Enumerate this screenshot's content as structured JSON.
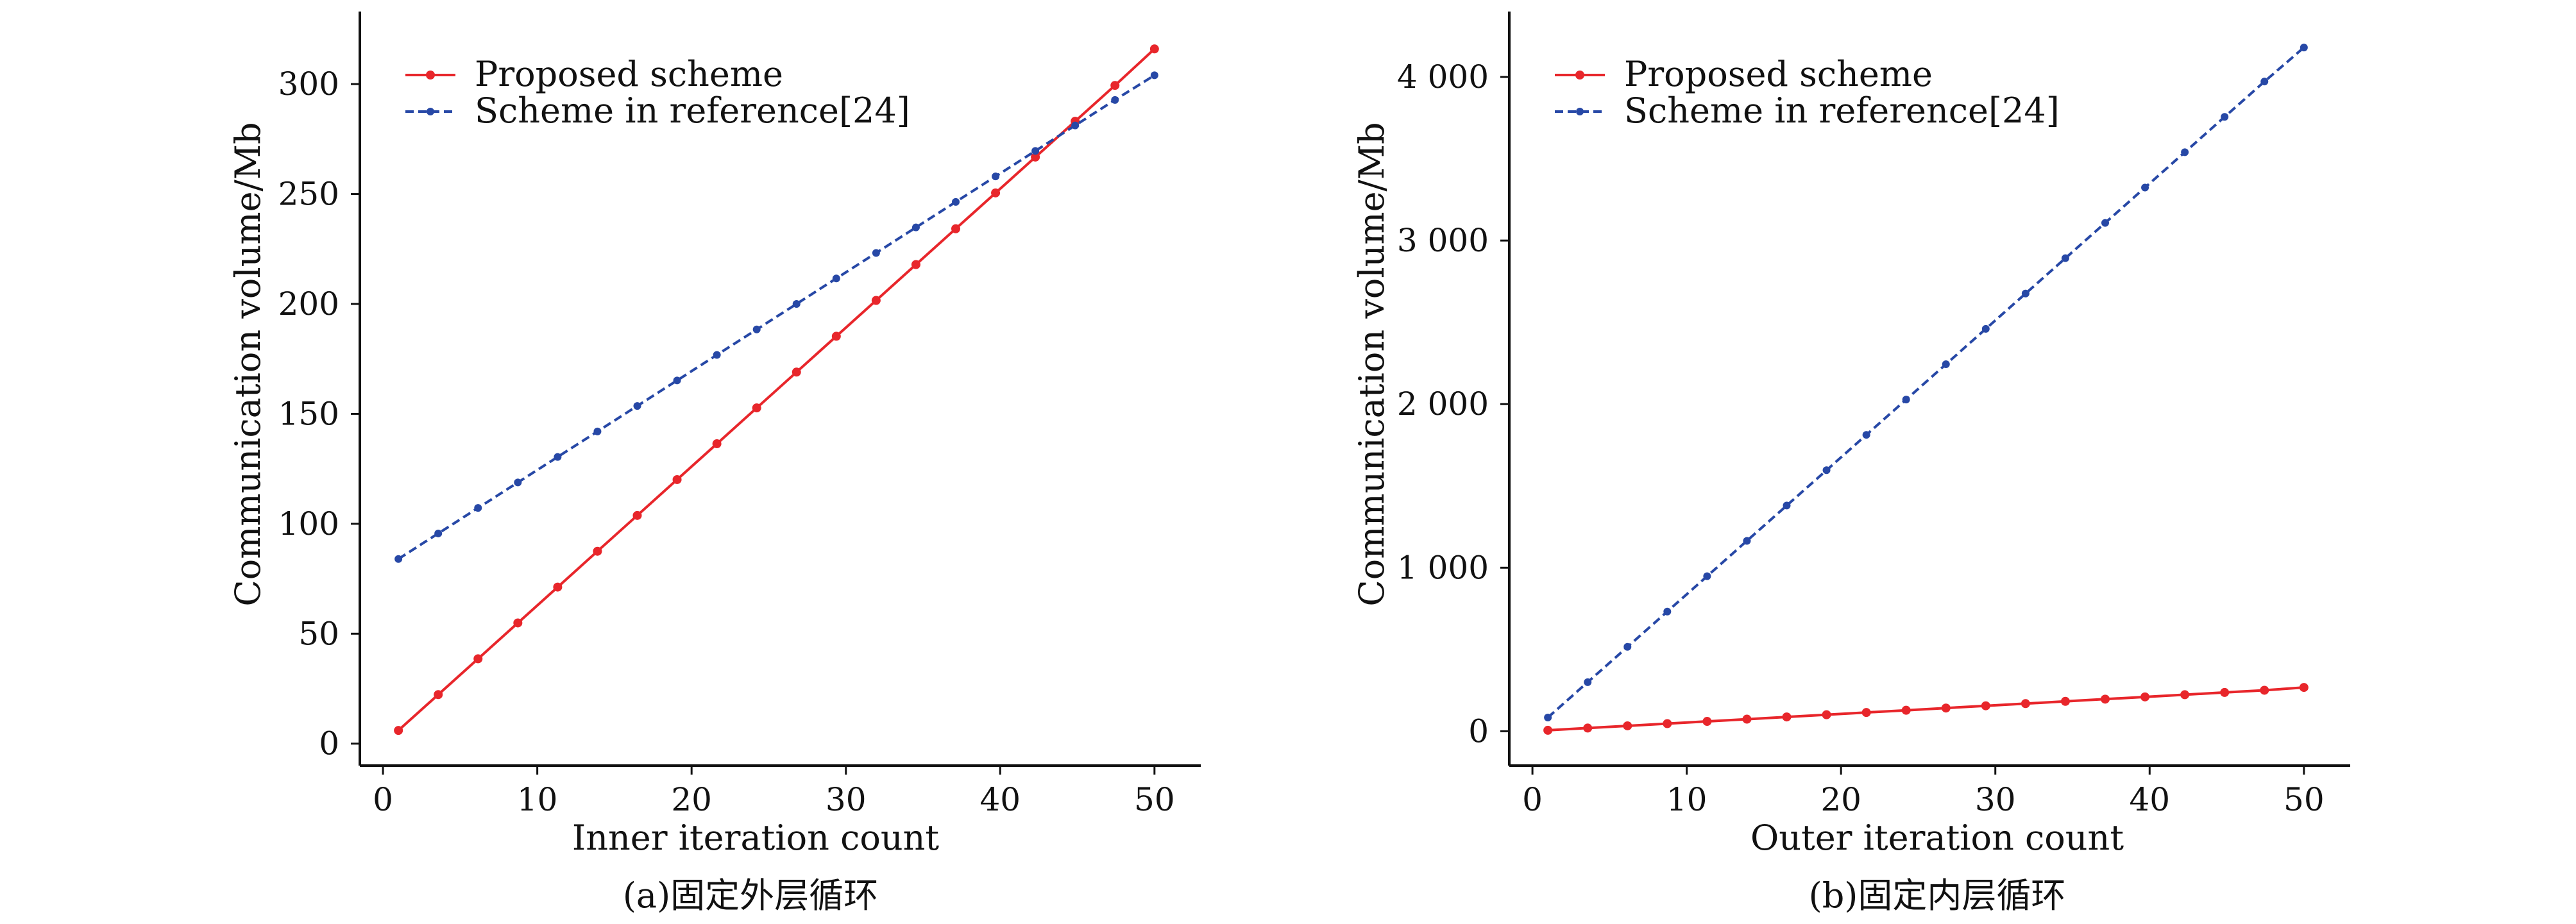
{
  "chart_data": [
    {
      "type": "line",
      "caption": "(a)固定外层循环",
      "xlabel": "Inner iteration count",
      "ylabel": "Communication volume/Mb",
      "xlim": [
        -1.5,
        53
      ],
      "ylim": [
        -10,
        333
      ],
      "xticks": [
        0,
        10,
        20,
        30,
        40,
        50
      ],
      "xtick_labels": [
        "0",
        "10",
        "20",
        "30",
        "40",
        "50"
      ],
      "yticks": [
        0,
        50,
        100,
        150,
        200,
        250,
        300
      ],
      "ytick_labels": [
        "0",
        "50",
        "100",
        "150",
        "200",
        "250",
        "300"
      ],
      "legend_position": "top-left",
      "series": [
        {
          "name": "Proposed scheme",
          "color": "#e8262b",
          "style": "solid",
          "x": [
            1,
            3.58,
            6.16,
            8.74,
            11.32,
            13.9,
            16.48,
            19.06,
            21.64,
            24.22,
            26.8,
            29.38,
            31.96,
            34.54,
            37.12,
            39.7,
            42.28,
            44.86,
            47.44,
            50
          ],
          "values": [
            6,
            22.3,
            38.6,
            54.9,
            71.2,
            87.5,
            103.8,
            120.1,
            136.4,
            152.7,
            169,
            185.3,
            201.6,
            217.9,
            234.2,
            250.5,
            266.8,
            283.1,
            299.4,
            316
          ]
        },
        {
          "name": "Scheme in reference[24]",
          "color": "#2748a6",
          "style": "dashed",
          "x": [
            1,
            3.58,
            6.16,
            8.74,
            11.32,
            13.9,
            16.48,
            19.06,
            21.64,
            24.22,
            26.8,
            29.38,
            31.96,
            34.54,
            37.12,
            39.7,
            42.28,
            44.86,
            47.44,
            50
          ],
          "values": [
            84,
            95.6,
            107.2,
            118.8,
            130.4,
            142,
            153.6,
            165.2,
            176.8,
            188.4,
            200,
            211.6,
            223.2,
            234.8,
            246.4,
            258,
            269.6,
            281.2,
            292.8,
            304
          ]
        }
      ]
    },
    {
      "type": "line",
      "caption": "(b)固定内层循环",
      "xlabel": "Outer iteration count",
      "ylabel": "Communication volume/Mb",
      "xlim": [
        -1.5,
        53
      ],
      "ylim": [
        -210,
        4400
      ],
      "xticks": [
        0,
        10,
        20,
        30,
        40,
        50
      ],
      "xtick_labels": [
        "0",
        "10",
        "20",
        "30",
        "40",
        "50"
      ],
      "yticks": [
        0,
        1000,
        2000,
        3000,
        4000
      ],
      "ytick_labels": [
        "0",
        "1 000",
        "2 000",
        "3 000",
        "4 000"
      ],
      "legend_position": "top-left",
      "series": [
        {
          "name": "Proposed scheme",
          "color": "#e8262b",
          "style": "solid",
          "x": [
            1,
            3.58,
            6.16,
            8.74,
            11.32,
            13.9,
            16.48,
            19.06,
            21.64,
            24.22,
            26.8,
            29.38,
            31.96,
            34.54,
            37.12,
            39.7,
            42.28,
            44.86,
            47.44,
            50
          ],
          "values": [
            6,
            19.6,
            33.2,
            46.8,
            60.4,
            74,
            87.6,
            101.2,
            114.8,
            128.4,
            142,
            155.6,
            169.2,
            182.8,
            196.4,
            210,
            223.6,
            237.2,
            250.8,
            268
          ]
        },
        {
          "name": "Scheme in reference[24]",
          "color": "#2748a6",
          "style": "dashed",
          "x": [
            1,
            3.58,
            6.16,
            8.74,
            11.32,
            13.9,
            16.48,
            19.06,
            21.64,
            24.22,
            26.8,
            29.38,
            31.96,
            34.54,
            37.12,
            39.7,
            42.28,
            44.86,
            47.44,
            50
          ],
          "values": [
            84,
            300,
            516,
            732,
            948,
            1164,
            1380,
            1596,
            1812,
            2028,
            2244,
            2460,
            2676,
            2892,
            3108,
            3324,
            3540,
            3756,
            3972,
            4180
          ]
        }
      ]
    }
  ]
}
